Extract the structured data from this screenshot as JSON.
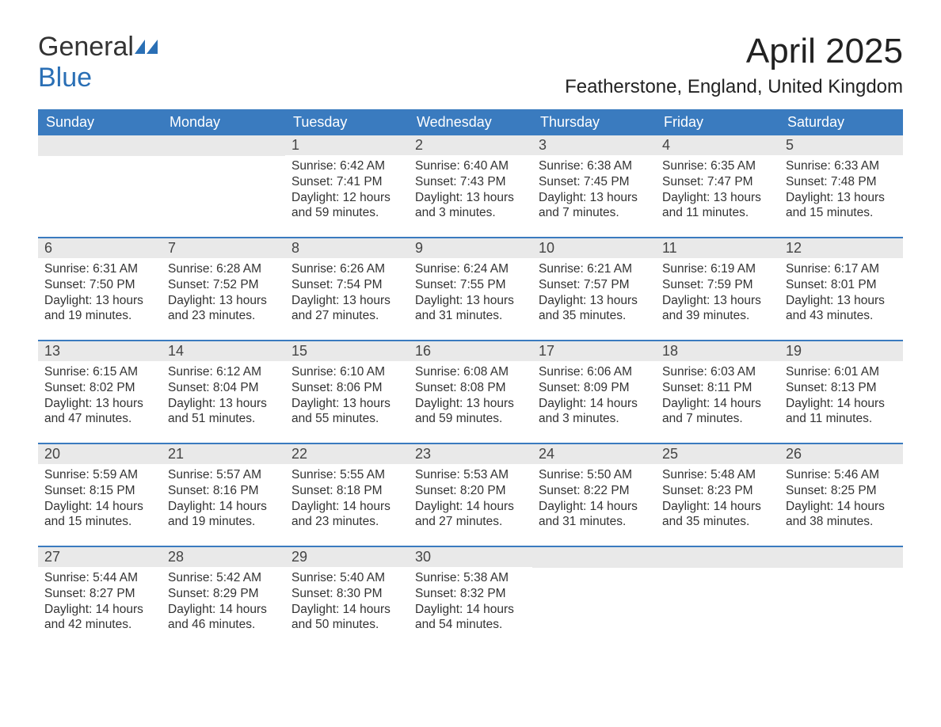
{
  "logo": {
    "text1": "General",
    "text2": "Blue",
    "icon_color": "#2a6fb5"
  },
  "title": "April 2025",
  "location": "Featherstone, England, United Kingdom",
  "colors": {
    "header_bg": "#3a7bbf",
    "header_text": "#ffffff",
    "daynum_bg": "#e9e9e9",
    "week_border": "#3a7bbf",
    "body_text": "#333333",
    "page_bg": "#ffffff"
  },
  "days_of_week": [
    "Sunday",
    "Monday",
    "Tuesday",
    "Wednesday",
    "Thursday",
    "Friday",
    "Saturday"
  ],
  "weeks": [
    [
      null,
      null,
      {
        "n": "1",
        "sr": "Sunrise: 6:42 AM",
        "ss": "Sunset: 7:41 PM",
        "dl1": "Daylight: 12 hours",
        "dl2": "and 59 minutes."
      },
      {
        "n": "2",
        "sr": "Sunrise: 6:40 AM",
        "ss": "Sunset: 7:43 PM",
        "dl1": "Daylight: 13 hours",
        "dl2": "and 3 minutes."
      },
      {
        "n": "3",
        "sr": "Sunrise: 6:38 AM",
        "ss": "Sunset: 7:45 PM",
        "dl1": "Daylight: 13 hours",
        "dl2": "and 7 minutes."
      },
      {
        "n": "4",
        "sr": "Sunrise: 6:35 AM",
        "ss": "Sunset: 7:47 PM",
        "dl1": "Daylight: 13 hours",
        "dl2": "and 11 minutes."
      },
      {
        "n": "5",
        "sr": "Sunrise: 6:33 AM",
        "ss": "Sunset: 7:48 PM",
        "dl1": "Daylight: 13 hours",
        "dl2": "and 15 minutes."
      }
    ],
    [
      {
        "n": "6",
        "sr": "Sunrise: 6:31 AM",
        "ss": "Sunset: 7:50 PM",
        "dl1": "Daylight: 13 hours",
        "dl2": "and 19 minutes."
      },
      {
        "n": "7",
        "sr": "Sunrise: 6:28 AM",
        "ss": "Sunset: 7:52 PM",
        "dl1": "Daylight: 13 hours",
        "dl2": "and 23 minutes."
      },
      {
        "n": "8",
        "sr": "Sunrise: 6:26 AM",
        "ss": "Sunset: 7:54 PM",
        "dl1": "Daylight: 13 hours",
        "dl2": "and 27 minutes."
      },
      {
        "n": "9",
        "sr": "Sunrise: 6:24 AM",
        "ss": "Sunset: 7:55 PM",
        "dl1": "Daylight: 13 hours",
        "dl2": "and 31 minutes."
      },
      {
        "n": "10",
        "sr": "Sunrise: 6:21 AM",
        "ss": "Sunset: 7:57 PM",
        "dl1": "Daylight: 13 hours",
        "dl2": "and 35 minutes."
      },
      {
        "n": "11",
        "sr": "Sunrise: 6:19 AM",
        "ss": "Sunset: 7:59 PM",
        "dl1": "Daylight: 13 hours",
        "dl2": "and 39 minutes."
      },
      {
        "n": "12",
        "sr": "Sunrise: 6:17 AM",
        "ss": "Sunset: 8:01 PM",
        "dl1": "Daylight: 13 hours",
        "dl2": "and 43 minutes."
      }
    ],
    [
      {
        "n": "13",
        "sr": "Sunrise: 6:15 AM",
        "ss": "Sunset: 8:02 PM",
        "dl1": "Daylight: 13 hours",
        "dl2": "and 47 minutes."
      },
      {
        "n": "14",
        "sr": "Sunrise: 6:12 AM",
        "ss": "Sunset: 8:04 PM",
        "dl1": "Daylight: 13 hours",
        "dl2": "and 51 minutes."
      },
      {
        "n": "15",
        "sr": "Sunrise: 6:10 AM",
        "ss": "Sunset: 8:06 PM",
        "dl1": "Daylight: 13 hours",
        "dl2": "and 55 minutes."
      },
      {
        "n": "16",
        "sr": "Sunrise: 6:08 AM",
        "ss": "Sunset: 8:08 PM",
        "dl1": "Daylight: 13 hours",
        "dl2": "and 59 minutes."
      },
      {
        "n": "17",
        "sr": "Sunrise: 6:06 AM",
        "ss": "Sunset: 8:09 PM",
        "dl1": "Daylight: 14 hours",
        "dl2": "and 3 minutes."
      },
      {
        "n": "18",
        "sr": "Sunrise: 6:03 AM",
        "ss": "Sunset: 8:11 PM",
        "dl1": "Daylight: 14 hours",
        "dl2": "and 7 minutes."
      },
      {
        "n": "19",
        "sr": "Sunrise: 6:01 AM",
        "ss": "Sunset: 8:13 PM",
        "dl1": "Daylight: 14 hours",
        "dl2": "and 11 minutes."
      }
    ],
    [
      {
        "n": "20",
        "sr": "Sunrise: 5:59 AM",
        "ss": "Sunset: 8:15 PM",
        "dl1": "Daylight: 14 hours",
        "dl2": "and 15 minutes."
      },
      {
        "n": "21",
        "sr": "Sunrise: 5:57 AM",
        "ss": "Sunset: 8:16 PM",
        "dl1": "Daylight: 14 hours",
        "dl2": "and 19 minutes."
      },
      {
        "n": "22",
        "sr": "Sunrise: 5:55 AM",
        "ss": "Sunset: 8:18 PM",
        "dl1": "Daylight: 14 hours",
        "dl2": "and 23 minutes."
      },
      {
        "n": "23",
        "sr": "Sunrise: 5:53 AM",
        "ss": "Sunset: 8:20 PM",
        "dl1": "Daylight: 14 hours",
        "dl2": "and 27 minutes."
      },
      {
        "n": "24",
        "sr": "Sunrise: 5:50 AM",
        "ss": "Sunset: 8:22 PM",
        "dl1": "Daylight: 14 hours",
        "dl2": "and 31 minutes."
      },
      {
        "n": "25",
        "sr": "Sunrise: 5:48 AM",
        "ss": "Sunset: 8:23 PM",
        "dl1": "Daylight: 14 hours",
        "dl2": "and 35 minutes."
      },
      {
        "n": "26",
        "sr": "Sunrise: 5:46 AM",
        "ss": "Sunset: 8:25 PM",
        "dl1": "Daylight: 14 hours",
        "dl2": "and 38 minutes."
      }
    ],
    [
      {
        "n": "27",
        "sr": "Sunrise: 5:44 AM",
        "ss": "Sunset: 8:27 PM",
        "dl1": "Daylight: 14 hours",
        "dl2": "and 42 minutes."
      },
      {
        "n": "28",
        "sr": "Sunrise: 5:42 AM",
        "ss": "Sunset: 8:29 PM",
        "dl1": "Daylight: 14 hours",
        "dl2": "and 46 minutes."
      },
      {
        "n": "29",
        "sr": "Sunrise: 5:40 AM",
        "ss": "Sunset: 8:30 PM",
        "dl1": "Daylight: 14 hours",
        "dl2": "and 50 minutes."
      },
      {
        "n": "30",
        "sr": "Sunrise: 5:38 AM",
        "ss": "Sunset: 8:32 PM",
        "dl1": "Daylight: 14 hours",
        "dl2": "and 54 minutes."
      },
      null,
      null,
      null
    ]
  ]
}
